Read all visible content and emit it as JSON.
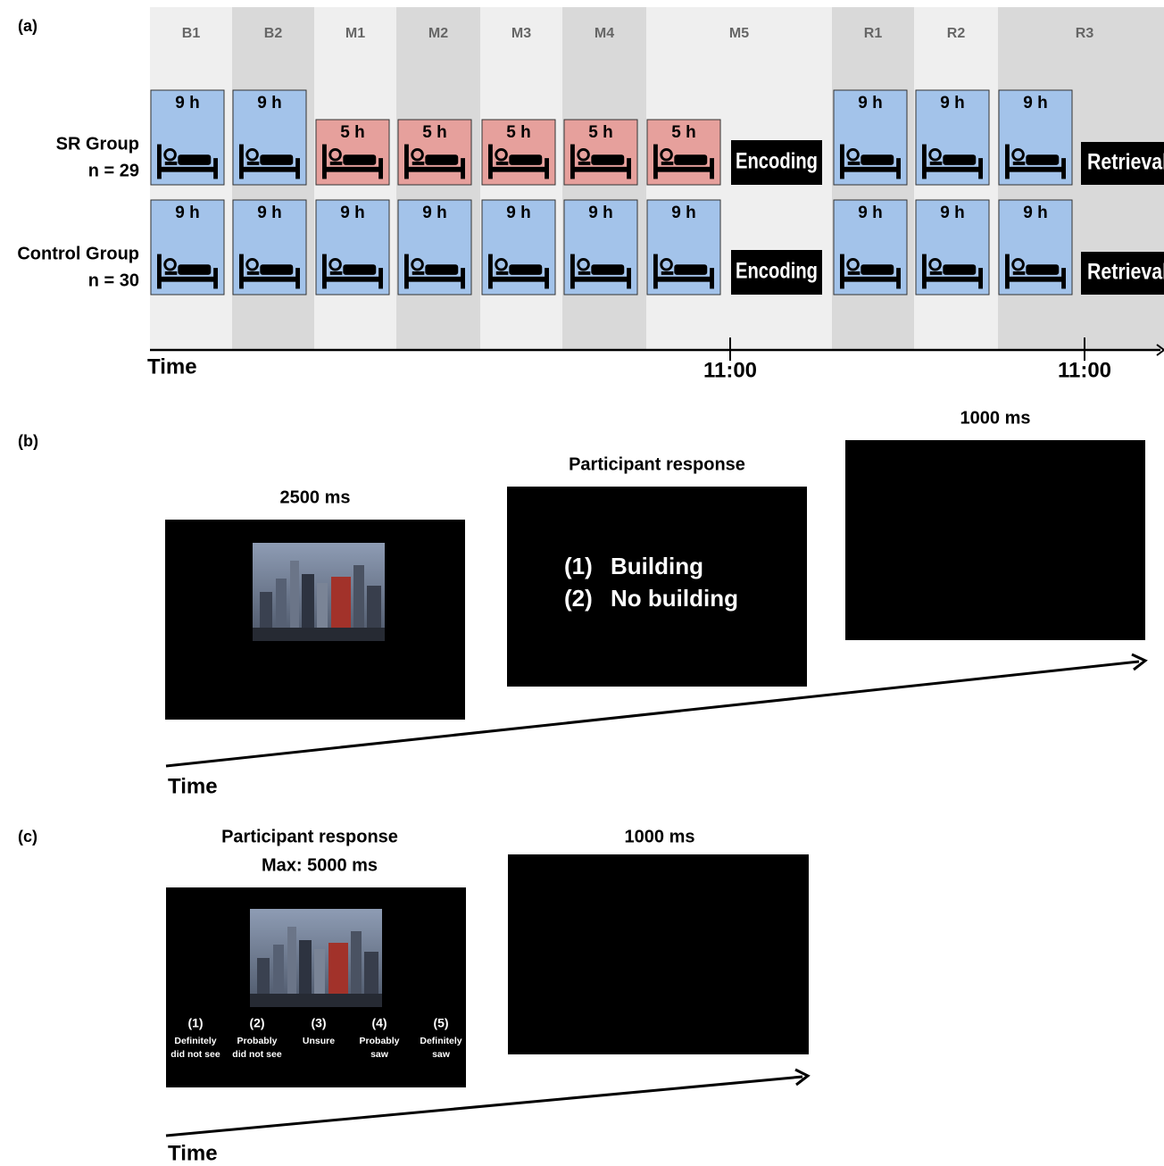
{
  "panel_a": {
    "label": "(a)",
    "days": [
      "B1",
      "B2",
      "M1",
      "M2",
      "M3",
      "M4",
      "M5",
      "R1",
      "R2",
      "R3"
    ],
    "groups": [
      {
        "name": "SR Group",
        "n": "n = 29",
        "sleep": [
          "9 h",
          "9 h",
          "5 h",
          "5 h",
          "5 h",
          "5 h",
          "5 h",
          "9 h",
          "9 h",
          "9 h"
        ]
      },
      {
        "name": "Control Group",
        "n": "n = 30",
        "sleep": [
          "9 h",
          "9 h",
          "9 h",
          "9 h",
          "9 h",
          "9 h",
          "9 h",
          "9 h",
          "9 h",
          "9 h"
        ]
      }
    ],
    "encoding": "Encoding",
    "retrieval": "Retrieval",
    "time_label": "Time",
    "time_ticks": [
      "11:00",
      "11:00"
    ]
  },
  "panel_b": {
    "label": "(b)",
    "screens": [
      {
        "title": "2500 ms"
      },
      {
        "title": "Participant response",
        "options": [
          {
            "number": "(1)",
            "text": "Building"
          },
          {
            "number": "(2)",
            "text": "No building"
          }
        ]
      },
      {
        "title": "1000 ms"
      }
    ],
    "time_label": "Time"
  },
  "panel_c": {
    "label": "(c)",
    "screens": [
      {
        "title": [
          "Participant response",
          "Max: 5000 ms"
        ],
        "options": [
          {
            "number": "(1)",
            "text": [
              "Definitely",
              "did not see"
            ]
          },
          {
            "number": "(2)",
            "text": [
              "Probably",
              "did not see"
            ]
          },
          {
            "number": "(3)",
            "text": [
              "Unsure"
            ]
          },
          {
            "number": "(4)",
            "text": [
              "Probably",
              "saw"
            ]
          },
          {
            "number": "(5)",
            "text": [
              "Definitely",
              "saw"
            ]
          }
        ]
      },
      {
        "title": "1000 ms"
      }
    ],
    "time_label": "Time"
  }
}
